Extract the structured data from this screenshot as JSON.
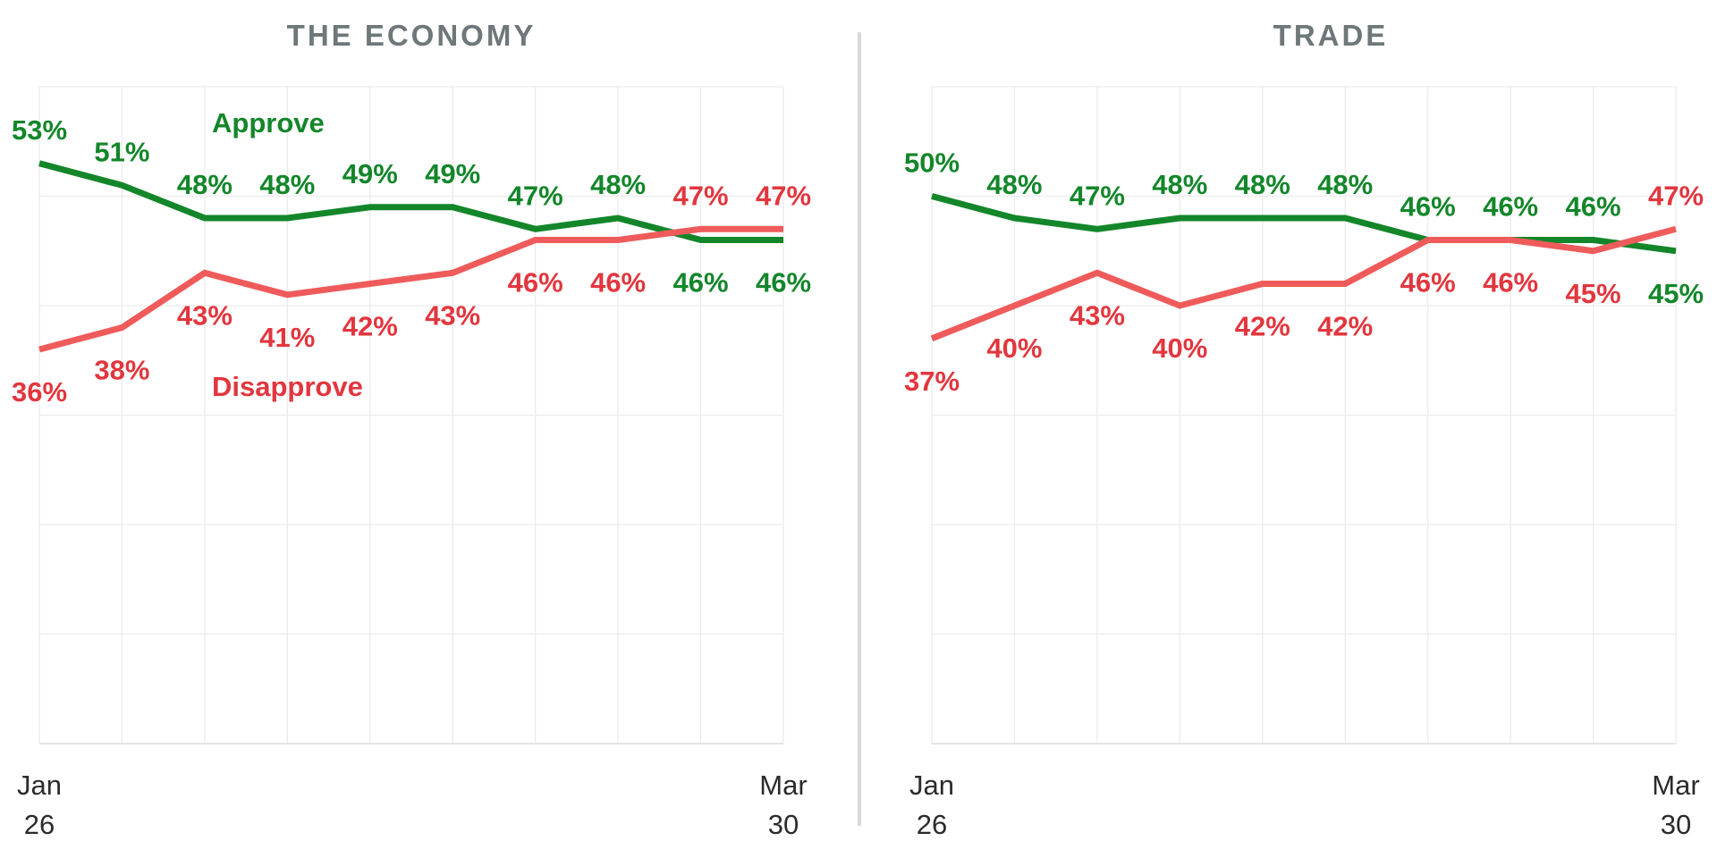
{
  "colors": {
    "approve_line": "#13862a",
    "approve_text": "#13862a",
    "disapprove_line": "#ef5b5b",
    "disapprove_text": "#e2363e",
    "title": "#6e7779",
    "divider": "#d9d9d9"
  },
  "chart_data": [
    {
      "type": "line",
      "title": "THE ECONOMY",
      "ylim": [
        0,
        60
      ],
      "grid": true,
      "x_tick_labels": [
        {
          "top": "Jan",
          "bottom": "26",
          "index": 0
        },
        {
          "top": "Mar",
          "bottom": "30",
          "index": 9
        }
      ],
      "series": [
        {
          "name": "Approve",
          "color": "#13862a",
          "values": [
            53,
            51,
            48,
            48,
            49,
            49,
            47,
            48,
            46,
            46
          ],
          "labels": [
            "53%",
            "51%",
            "48%",
            "48%",
            "49%",
            "49%",
            "47%",
            "48%",
            "46%",
            "46%"
          ],
          "label_positions": [
            "above",
            "above",
            "above",
            "above",
            "above",
            "above",
            "above",
            "above",
            "below",
            "below"
          ]
        },
        {
          "name": "Disapprove",
          "color": "#ef5b5b",
          "values": [
            36,
            38,
            43,
            41,
            42,
            43,
            46,
            46,
            47,
            47
          ],
          "labels": [
            "36%",
            "38%",
            "43%",
            "41%",
            "42%",
            "43%",
            "46%",
            "46%",
            "47%",
            "47%"
          ],
          "label_positions": [
            "below",
            "below",
            "below",
            "below",
            "below",
            "below",
            "below",
            "below",
            "above",
            "above"
          ]
        }
      ],
      "legend_labels": [
        {
          "text": "Approve",
          "series": 0
        },
        {
          "text": "Disapprove",
          "series": 1
        }
      ]
    },
    {
      "type": "line",
      "title": "TRADE",
      "ylim": [
        0,
        60
      ],
      "grid": true,
      "x_tick_labels": [
        {
          "top": "Jan",
          "bottom": "26",
          "index": 0
        },
        {
          "top": "Mar",
          "bottom": "30",
          "index": 9
        }
      ],
      "series": [
        {
          "name": "Approve",
          "color": "#13862a",
          "values": [
            50,
            48,
            47,
            48,
            48,
            48,
            46,
            46,
            46,
            45
          ],
          "labels": [
            "50%",
            "48%",
            "47%",
            "48%",
            "48%",
            "48%",
            "46%",
            "46%",
            "46%",
            "45%"
          ],
          "label_positions": [
            "above",
            "above",
            "above",
            "above",
            "above",
            "above",
            "above",
            "above",
            "above",
            "below"
          ]
        },
        {
          "name": "Disapprove",
          "color": "#ef5b5b",
          "values": [
            37,
            40,
            43,
            40,
            42,
            42,
            46,
            46,
            45,
            47
          ],
          "labels": [
            "37%",
            "40%",
            "43%",
            "40%",
            "42%",
            "42%",
            "46%",
            "46%",
            "45%",
            "47%"
          ],
          "label_positions": [
            "below",
            "below",
            "below",
            "below",
            "below",
            "below",
            "below",
            "below",
            "below",
            "above"
          ]
        }
      ],
      "legend_labels": []
    }
  ]
}
